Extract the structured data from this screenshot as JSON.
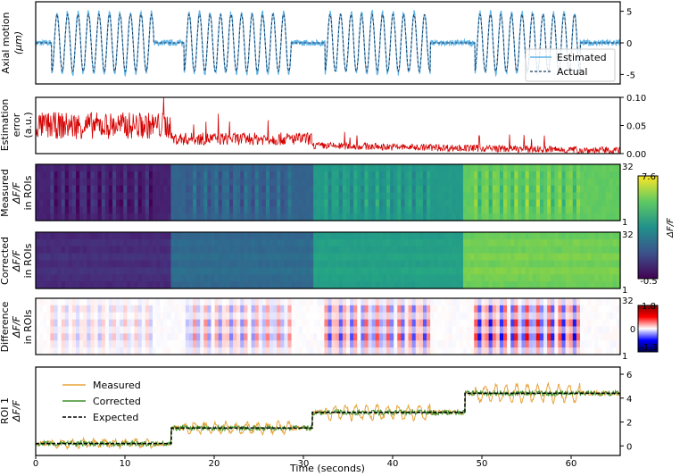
{
  "figure": {
    "xlabel": "Time (seconds)",
    "xlim": [
      0,
      65.5
    ],
    "xticks": [
      0,
      10,
      20,
      30,
      40,
      50,
      60
    ]
  },
  "chart_data": [
    {
      "type": "line",
      "ylabel_lines": [
        "Axial motion",
        "(μm)"
      ],
      "ylim": [
        -6.5,
        6.5
      ],
      "yticks": [
        -5,
        0,
        5
      ],
      "legend": {
        "placement": "lower-right",
        "entries": [
          "Estimated",
          "Actual"
        ]
      },
      "segments": [
        {
          "t_start": 0,
          "t_end": 1.8,
          "value": 0
        },
        {
          "t_start": 1.8,
          "t_end": 13.2,
          "oscillation": {
            "frequency_hz": 0.85,
            "amplitude": 4.5
          }
        },
        {
          "t_start": 13.2,
          "t_end": 16.6,
          "value": 0
        },
        {
          "t_start": 16.6,
          "t_end": 28.6,
          "oscillation": {
            "frequency_hz": 0.85,
            "amplitude": 4.5
          }
        },
        {
          "t_start": 28.6,
          "t_end": 32.4,
          "value": 0
        },
        {
          "t_start": 32.4,
          "t_end": 44.2,
          "oscillation": {
            "frequency_hz": 0.85,
            "amplitude": 4.5
          }
        },
        {
          "t_start": 44.2,
          "t_end": 49.2,
          "value": 0
        },
        {
          "t_start": 49.2,
          "t_end": 61.0,
          "oscillation": {
            "frequency_hz": 0.85,
            "amplitude": 4.5
          }
        },
        {
          "t_start": 61.0,
          "t_end": 65.5,
          "value": 0
        }
      ],
      "series": [
        {
          "name": "Estimated",
          "color": "#5fb4e8",
          "style": "solid"
        },
        {
          "name": "Actual",
          "color": "#1f3a5a",
          "style": "dashed"
        }
      ]
    },
    {
      "type": "line",
      "ylabel_lines": [
        "Estimation",
        "error",
        "(a.u.)"
      ],
      "ylim": [
        0,
        0.1
      ],
      "yticks": [
        0,
        0.05,
        0.1
      ],
      "ytick_labels": [
        "0.00",
        "0.05",
        "0.10"
      ],
      "color": "#d40000",
      "levels": [
        {
          "t_start": 0,
          "t_end": 15.2,
          "mean": 0.045,
          "noise": 0.03
        },
        {
          "t_start": 15.2,
          "t_end": 31.0,
          "mean": 0.024,
          "noise": 0.014
        },
        {
          "t_start": 31.0,
          "t_end": 65.5,
          "mean_start": 0.013,
          "mean_end": 0.004,
          "noise": 0.008
        }
      ]
    },
    {
      "type": "heatmap",
      "ylabel_lines": [
        "Measured",
        "ΔF/F",
        "in ROIs"
      ],
      "yticks": [
        1,
        32
      ],
      "colorbar": {
        "min_label": "-0.5",
        "max_label": "7.6",
        "label": "ΔF/F",
        "colormap": "viridis"
      }
    },
    {
      "type": "heatmap",
      "ylabel_lines": [
        "Corrected",
        "ΔF/F",
        "in ROIs"
      ],
      "yticks": [
        1,
        32
      ]
    },
    {
      "type": "heatmap",
      "ylabel_lines": [
        "Difference",
        "ΔF/F",
        "in ROIs"
      ],
      "yticks": [
        1,
        32
      ],
      "colorbar": {
        "min_label": "-1.3",
        "mid_label": "0",
        "max_label": "1.8",
        "colormap": "seismic"
      }
    },
    {
      "type": "line",
      "ylabel_lines": [
        "ROI 1",
        "ΔF/F"
      ],
      "ylim": [
        -0.8,
        6.6
      ],
      "yticks": [
        0,
        2,
        4,
        6
      ],
      "legend": {
        "placement": "upper-left",
        "entries": [
          "Measured",
          "Corrected",
          "Expected"
        ]
      },
      "expected_steps": [
        {
          "t_start": 0,
          "t_end": 15.2,
          "value": 0.2
        },
        {
          "t_start": 15.2,
          "t_end": 31.0,
          "value": 1.5
        },
        {
          "t_start": 31.0,
          "t_end": 48.1,
          "value": 2.8
        },
        {
          "t_start": 48.1,
          "t_end": 65.5,
          "value": 4.4
        }
      ],
      "series": [
        {
          "name": "Measured",
          "color": "#e8a33a",
          "noise": 0.55
        },
        {
          "name": "Corrected",
          "color": "#3f8f29",
          "noise": 0.3
        },
        {
          "name": "Expected",
          "color": "#000000",
          "style": "dashed"
        }
      ]
    }
  ]
}
